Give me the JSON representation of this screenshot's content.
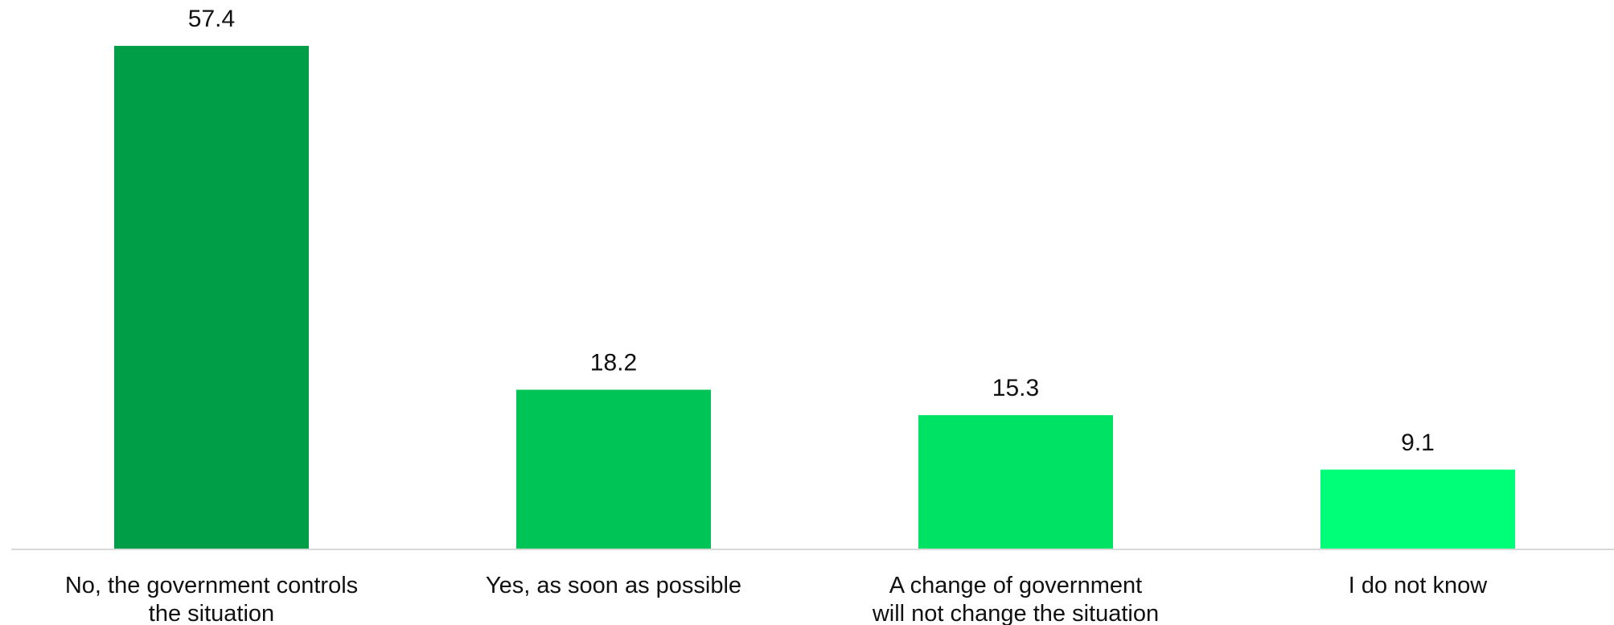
{
  "chart_data": {
    "type": "bar",
    "categories": [
      [
        "No, the government controls",
        "the situation"
      ],
      [
        "Yes, as soon as possible"
      ],
      [
        "A change of government",
        "will not change the situation"
      ],
      [
        "I do not know"
      ]
    ],
    "values": [
      57.4,
      18.2,
      15.3,
      9.1
    ],
    "data_labels": [
      "57.4",
      "18.2",
      "15.3",
      "9.1"
    ],
    "colors": [
      "#009e47",
      "#00c455",
      "#00e264",
      "#00ff78"
    ],
    "axis_color": "#d9d9d9",
    "ylim": [
      0,
      57.4
    ],
    "grid": false,
    "legend": "none"
  }
}
